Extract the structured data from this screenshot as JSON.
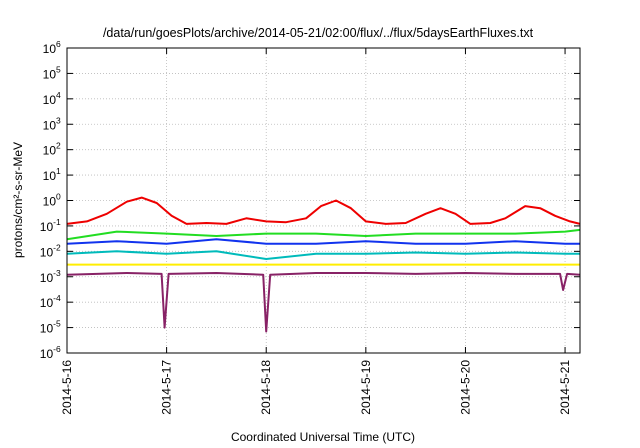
{
  "chart_data": {
    "type": "line",
    "title": "/data/run/goesPlots/archive/2014-05-21/02:00/flux/../flux/5daysEarthFluxes.txt",
    "xlabel": "Coordinated Universal Time (UTC)",
    "ylabel": "protons/cm²-s-sr-MeV",
    "yscale": "log",
    "ylim": [
      1e-06,
      1000000.0
    ],
    "xlim": [
      0,
      5.15
    ],
    "grid": true,
    "x_ticks": [
      {
        "x": 0,
        "label": "2014-5-16"
      },
      {
        "x": 1,
        "label": "2014-5-17"
      },
      {
        "x": 2,
        "label": "2014-5-18"
      },
      {
        "x": 3,
        "label": "2014-5-19"
      },
      {
        "x": 4,
        "label": "2014-5-20"
      },
      {
        "x": 5,
        "label": "2014-5-21"
      }
    ],
    "y_ticks": [
      {
        "exp": -6,
        "base": "10",
        "sup": "-6"
      },
      {
        "exp": -5,
        "base": "10",
        "sup": "-5"
      },
      {
        "exp": -4,
        "base": "10",
        "sup": "-4"
      },
      {
        "exp": -3,
        "base": "10",
        "sup": "-3"
      },
      {
        "exp": -2,
        "base": "10",
        "sup": "-2"
      },
      {
        "exp": -1,
        "base": "10",
        "sup": "-1"
      },
      {
        "exp": 0,
        "base": "10",
        "sup": "0"
      },
      {
        "exp": 1,
        "base": "10",
        "sup": "1"
      },
      {
        "exp": 2,
        "base": "10",
        "sup": "2"
      },
      {
        "exp": 3,
        "base": "10",
        "sup": "3"
      },
      {
        "exp": 4,
        "base": "10",
        "sup": "4"
      },
      {
        "exp": 5,
        "base": "10",
        "sup": "5"
      },
      {
        "exp": 6,
        "base": "10",
        "sup": "6"
      }
    ],
    "x_unit": "days since 2014-5-16 00:00 UTC",
    "series": [
      {
        "color": "#ee0000",
        "points": [
          [
            0,
            0.12
          ],
          [
            0.2,
            0.15
          ],
          [
            0.4,
            0.3
          ],
          [
            0.6,
            0.9
          ],
          [
            0.75,
            1.3
          ],
          [
            0.9,
            0.8
          ],
          [
            1.05,
            0.25
          ],
          [
            1.2,
            0.12
          ],
          [
            1.4,
            0.13
          ],
          [
            1.6,
            0.12
          ],
          [
            1.8,
            0.2
          ],
          [
            2.0,
            0.15
          ],
          [
            2.2,
            0.14
          ],
          [
            2.4,
            0.2
          ],
          [
            2.55,
            0.6
          ],
          [
            2.7,
            1.0
          ],
          [
            2.85,
            0.5
          ],
          [
            3.0,
            0.15
          ],
          [
            3.2,
            0.12
          ],
          [
            3.4,
            0.13
          ],
          [
            3.6,
            0.3
          ],
          [
            3.75,
            0.5
          ],
          [
            3.9,
            0.3
          ],
          [
            4.05,
            0.12
          ],
          [
            4.25,
            0.13
          ],
          [
            4.4,
            0.2
          ],
          [
            4.6,
            0.6
          ],
          [
            4.75,
            0.5
          ],
          [
            4.9,
            0.25
          ],
          [
            5.05,
            0.15
          ],
          [
            5.15,
            0.12
          ]
        ]
      },
      {
        "color": "#22dd22",
        "points": [
          [
            0,
            0.03
          ],
          [
            0.5,
            0.06
          ],
          [
            1.0,
            0.05
          ],
          [
            1.5,
            0.04
          ],
          [
            2.0,
            0.05
          ],
          [
            2.5,
            0.05
          ],
          [
            3.0,
            0.04
          ],
          [
            3.5,
            0.05
          ],
          [
            4.0,
            0.05
          ],
          [
            4.5,
            0.05
          ],
          [
            5.0,
            0.06
          ],
          [
            5.15,
            0.07
          ]
        ]
      },
      {
        "color": "#1133ee",
        "points": [
          [
            0,
            0.02
          ],
          [
            0.5,
            0.025
          ],
          [
            1.0,
            0.02
          ],
          [
            1.5,
            0.03
          ],
          [
            2.0,
            0.02
          ],
          [
            2.5,
            0.02
          ],
          [
            3.0,
            0.025
          ],
          [
            3.5,
            0.02
          ],
          [
            4.0,
            0.02
          ],
          [
            4.5,
            0.025
          ],
          [
            5.0,
            0.02
          ],
          [
            5.15,
            0.02
          ]
        ]
      },
      {
        "color": "#00bbbb",
        "points": [
          [
            0,
            0.008
          ],
          [
            0.5,
            0.01
          ],
          [
            1.0,
            0.008
          ],
          [
            1.5,
            0.01
          ],
          [
            2.0,
            0.005
          ],
          [
            2.5,
            0.008
          ],
          [
            3.0,
            0.008
          ],
          [
            3.5,
            0.009
          ],
          [
            4.0,
            0.008
          ],
          [
            4.5,
            0.009
          ],
          [
            5.0,
            0.008
          ],
          [
            5.15,
            0.008
          ]
        ]
      },
      {
        "color": "#ffee00",
        "points": [
          [
            0,
            0.003
          ],
          [
            0.5,
            0.003
          ],
          [
            1.0,
            0.003
          ],
          [
            1.5,
            0.003
          ],
          [
            2.0,
            0.003
          ],
          [
            2.5,
            0.003
          ],
          [
            3.0,
            0.003
          ],
          [
            3.5,
            0.003
          ],
          [
            4.0,
            0.003
          ],
          [
            4.5,
            0.003
          ],
          [
            5.0,
            0.003
          ],
          [
            5.15,
            0.003
          ]
        ]
      },
      {
        "color": "#882266",
        "points": [
          [
            0,
            0.0012
          ],
          [
            0.6,
            0.0014
          ],
          [
            0.95,
            0.0013
          ],
          [
            0.98,
            1e-05
          ],
          [
            1.02,
            0.0013
          ],
          [
            1.5,
            0.0014
          ],
          [
            1.97,
            0.0012
          ],
          [
            2.0,
            7e-06
          ],
          [
            2.04,
            0.0012
          ],
          [
            2.5,
            0.0014
          ],
          [
            3.0,
            0.0014
          ],
          [
            3.5,
            0.0013
          ],
          [
            4.0,
            0.0014
          ],
          [
            4.5,
            0.0013
          ],
          [
            4.95,
            0.0013
          ],
          [
            4.98,
            0.0003
          ],
          [
            5.02,
            0.0013
          ],
          [
            5.15,
            0.0012
          ]
        ]
      }
    ]
  }
}
